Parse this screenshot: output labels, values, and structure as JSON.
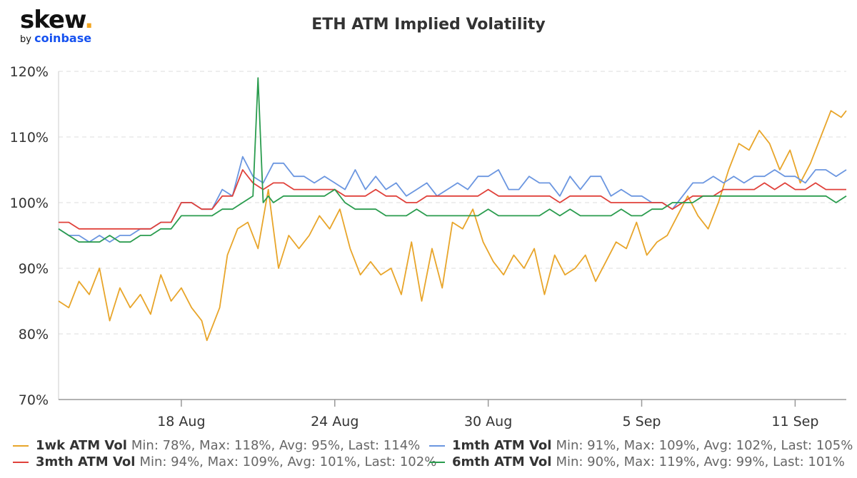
{
  "logo": {
    "brand": "skew",
    "by": "by",
    "company": "coinbase"
  },
  "chart_data": {
    "type": "line",
    "title": "ETH ATM Implied Volatility",
    "x_ticks": [
      "18 Aug",
      "24 Aug",
      "30 Aug",
      "5 Sep",
      "11 Sep"
    ],
    "x_tick_days": [
      18,
      24,
      30,
      36,
      42
    ],
    "x_range_days": [
      13.2,
      44
    ],
    "y_ticks": [
      "70%",
      "80%",
      "90%",
      "100%",
      "110%",
      "120%"
    ],
    "y_tick_values": [
      70,
      80,
      90,
      100,
      110,
      120
    ],
    "ylim": [
      70,
      120
    ],
    "grid": "horizontal dashed",
    "legend_position": "bottom",
    "series": [
      {
        "name": "1wk ATM Vol",
        "stats": "Min: 78%, Max: 118%, Avg: 95%, Last: 114%",
        "color": "#e8a52a",
        "x": [
          13.2,
          13.6,
          14.0,
          14.4,
          14.8,
          15.2,
          15.6,
          16.0,
          16.4,
          16.8,
          17.2,
          17.6,
          18.0,
          18.4,
          18.8,
          19.0,
          19.2,
          19.5,
          19.8,
          20.2,
          20.6,
          21.0,
          21.4,
          21.8,
          22.2,
          22.6,
          23.0,
          23.4,
          23.8,
          24.2,
          24.6,
          25.0,
          25.4,
          25.8,
          26.2,
          26.6,
          27.0,
          27.4,
          27.8,
          28.2,
          28.6,
          29.0,
          29.4,
          29.8,
          30.2,
          30.6,
          31.0,
          31.4,
          31.8,
          32.2,
          32.6,
          33.0,
          33.4,
          33.8,
          34.2,
          34.6,
          35.0,
          35.4,
          35.8,
          36.2,
          36.6,
          37.0,
          37.4,
          37.8,
          38.2,
          38.6,
          39.0,
          39.4,
          39.8,
          40.2,
          40.6,
          41.0,
          41.4,
          41.8,
          42.2,
          42.6,
          43.0,
          43.4,
          43.8,
          44.0
        ],
        "values": [
          85,
          84,
          88,
          86,
          90,
          82,
          87,
          84,
          86,
          83,
          89,
          85,
          87,
          84,
          82,
          79,
          81,
          84,
          92,
          96,
          97,
          93,
          102,
          90,
          95,
          93,
          95,
          98,
          96,
          99,
          93,
          89,
          91,
          89,
          90,
          86,
          94,
          85,
          93,
          87,
          97,
          96,
          99,
          94,
          91,
          89,
          92,
          90,
          93,
          86,
          92,
          89,
          90,
          92,
          88,
          91,
          94,
          93,
          97,
          92,
          94,
          95,
          98,
          101,
          98,
          96,
          100,
          105,
          109,
          108,
          111,
          109,
          105,
          108,
          103,
          106,
          110,
          114,
          113,
          114
        ],
        "note_x_is_day_of_august_continuing_into_september": ""
      },
      {
        "name": "1mth ATM Vol",
        "stats": "Min: 91%, Max: 109%, Avg: 102%, Last: 105%",
        "color": "#6b96e0",
        "x": [
          13.2,
          13.6,
          14.0,
          14.4,
          14.8,
          15.2,
          15.6,
          16.0,
          16.4,
          16.8,
          17.2,
          17.6,
          18.0,
          18.4,
          18.8,
          19.2,
          19.6,
          20.0,
          20.4,
          20.8,
          21.2,
          21.6,
          22.0,
          22.4,
          22.8,
          23.2,
          23.6,
          24.0,
          24.4,
          24.8,
          25.2,
          25.6,
          26.0,
          26.4,
          26.8,
          27.2,
          27.6,
          28.0,
          28.4,
          28.8,
          29.2,
          29.6,
          30.0,
          30.4,
          30.8,
          31.2,
          31.6,
          32.0,
          32.4,
          32.8,
          33.2,
          33.6,
          34.0,
          34.4,
          34.8,
          35.2,
          35.6,
          36.0,
          36.4,
          36.8,
          37.2,
          37.6,
          38.0,
          38.4,
          38.8,
          39.2,
          39.6,
          40.0,
          40.4,
          40.8,
          41.2,
          41.6,
          42.0,
          42.4,
          42.8,
          43.2,
          43.6,
          44.0
        ],
        "values": [
          96,
          95,
          95,
          94,
          95,
          94,
          95,
          95,
          96,
          96,
          97,
          97,
          100,
          100,
          99,
          99,
          102,
          101,
          107,
          104,
          103,
          106,
          106,
          104,
          104,
          103,
          104,
          103,
          102,
          105,
          102,
          104,
          102,
          103,
          101,
          102,
          103,
          101,
          102,
          103,
          102,
          104,
          104,
          105,
          102,
          102,
          104,
          103,
          103,
          101,
          104,
          102,
          104,
          104,
          101,
          102,
          101,
          101,
          100,
          100,
          99,
          101,
          103,
          103,
          104,
          103,
          104,
          103,
          104,
          104,
          105,
          104,
          104,
          103,
          105,
          105,
          104,
          105
        ]
      },
      {
        "name": "3mth ATM Vol",
        "stats": "Min: 94%, Max: 109%, Avg: 101%, Last: 102%",
        "color": "#e0413a",
        "x": [
          13.2,
          13.6,
          14.0,
          14.4,
          14.8,
          15.2,
          15.6,
          16.0,
          16.4,
          16.8,
          17.2,
          17.6,
          18.0,
          18.4,
          18.8,
          19.2,
          19.6,
          20.0,
          20.4,
          20.8,
          21.2,
          21.6,
          22.0,
          22.4,
          22.8,
          23.2,
          23.6,
          24.0,
          24.4,
          24.8,
          25.2,
          25.6,
          26.0,
          26.4,
          26.8,
          27.2,
          27.6,
          28.0,
          28.4,
          28.8,
          29.2,
          29.6,
          30.0,
          30.4,
          30.8,
          31.2,
          31.6,
          32.0,
          32.4,
          32.8,
          33.2,
          33.6,
          34.0,
          34.4,
          34.8,
          35.2,
          35.6,
          36.0,
          36.4,
          36.8,
          37.2,
          37.6,
          38.0,
          38.4,
          38.8,
          39.2,
          39.6,
          40.0,
          40.4,
          40.8,
          41.2,
          41.6,
          42.0,
          42.4,
          42.8,
          43.2,
          43.6,
          44.0
        ],
        "values": [
          97,
          97,
          96,
          96,
          96,
          96,
          96,
          96,
          96,
          96,
          97,
          97,
          100,
          100,
          99,
          99,
          101,
          101,
          105,
          103,
          102,
          103,
          103,
          102,
          102,
          102,
          102,
          102,
          101,
          101,
          101,
          102,
          101,
          101,
          100,
          100,
          101,
          101,
          101,
          101,
          101,
          101,
          102,
          101,
          101,
          101,
          101,
          101,
          101,
          100,
          101,
          101,
          101,
          101,
          100,
          100,
          100,
          100,
          100,
          100,
          99,
          100,
          101,
          101,
          101,
          102,
          102,
          102,
          102,
          103,
          102,
          103,
          102,
          102,
          103,
          102,
          102,
          102
        ]
      },
      {
        "name": "6mth ATM Vol",
        "stats": "Min: 90%, Max: 119%, Avg: 99%, Last: 101%",
        "color": "#2a9c4e",
        "x": [
          13.2,
          13.6,
          14.0,
          14.4,
          14.8,
          15.2,
          15.6,
          16.0,
          16.4,
          16.8,
          17.2,
          17.6,
          18.0,
          18.4,
          18.8,
          19.2,
          19.6,
          20.0,
          20.4,
          20.8,
          21.0,
          21.2,
          21.4,
          21.6,
          22.0,
          22.4,
          22.8,
          23.2,
          23.6,
          24.0,
          24.4,
          24.8,
          25.2,
          25.6,
          26.0,
          26.4,
          26.8,
          27.2,
          27.6,
          28.0,
          28.4,
          28.8,
          29.2,
          29.6,
          30.0,
          30.4,
          30.8,
          31.2,
          31.6,
          32.0,
          32.4,
          32.8,
          33.2,
          33.6,
          34.0,
          34.4,
          34.8,
          35.2,
          35.6,
          36.0,
          36.4,
          36.8,
          37.2,
          37.6,
          38.0,
          38.4,
          38.8,
          39.2,
          39.6,
          40.0,
          40.4,
          40.8,
          41.2,
          41.6,
          42.0,
          42.4,
          42.8,
          43.2,
          43.6,
          44.0
        ],
        "values": [
          96,
          95,
          94,
          94,
          94,
          95,
          94,
          94,
          95,
          95,
          96,
          96,
          98,
          98,
          98,
          98,
          99,
          99,
          100,
          101,
          119,
          100,
          101,
          100,
          101,
          101,
          101,
          101,
          101,
          102,
          100,
          99,
          99,
          99,
          98,
          98,
          98,
          99,
          98,
          98,
          98,
          98,
          98,
          98,
          99,
          98,
          98,
          98,
          98,
          98,
          99,
          98,
          99,
          98,
          98,
          98,
          98,
          99,
          98,
          98,
          99,
          99,
          100,
          100,
          100,
          101,
          101,
          101,
          101,
          101,
          101,
          101,
          101,
          101,
          101,
          101,
          101,
          101,
          100,
          101
        ]
      }
    ]
  }
}
